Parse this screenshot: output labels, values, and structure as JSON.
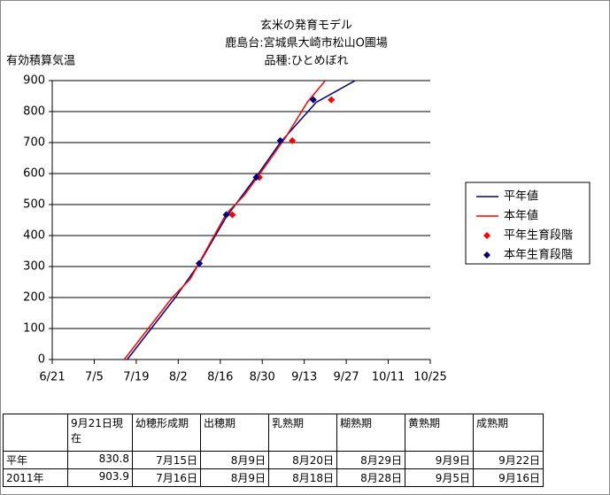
{
  "chart_data": {
    "type": "line",
    "title": [
      "玄米の発育モデル",
      "鹿島台:宮城県大崎市松山O圃場",
      "品種:ひとめぼれ"
    ],
    "y_label": "有効積算気温",
    "xlim": [
      172,
      298
    ],
    "xticks": [
      {
        "value": 172,
        "label": "6/21"
      },
      {
        "value": 186,
        "label": "7/5"
      },
      {
        "value": 200,
        "label": "7/19"
      },
      {
        "value": 214,
        "label": "8/2"
      },
      {
        "value": 228,
        "label": "8/16"
      },
      {
        "value": 242,
        "label": "8/30"
      },
      {
        "value": 256,
        "label": "9/13"
      },
      {
        "value": 270,
        "label": "9/27"
      },
      {
        "value": 284,
        "label": "10/11"
      },
      {
        "value": 298,
        "label": "10/25"
      }
    ],
    "ylim": [
      0,
      900
    ],
    "yticks": [
      0,
      100,
      200,
      300,
      400,
      500,
      600,
      700,
      800,
      900
    ],
    "grid": true,
    "series": [
      {
        "name": "平年値",
        "color": "#000080",
        "mode": "line",
        "x": [
          197,
          205,
          213,
          221,
          230,
          240,
          248,
          260,
          273
        ],
        "values": [
          0,
          100,
          200,
          310,
          460,
          590,
          700,
          830,
          900
        ]
      },
      {
        "name": "本年値",
        "color": "#ff0000",
        "mode": "line",
        "x": [
          196,
          204,
          212,
          218,
          222,
          230,
          236,
          242,
          250,
          257,
          263
        ],
        "values": [
          0,
          100,
          200,
          260,
          330,
          470,
          530,
          610,
          720,
          830,
          900
        ]
      },
      {
        "name": "平年生育段階",
        "color": "#ff0000",
        "mode": "markers",
        "x": [
          221,
          232,
          241,
          252,
          265
        ],
        "values": [
          310,
          467,
          588,
          706,
          838
        ]
      },
      {
        "name": "本年生育段階",
        "color": "#000080",
        "mode": "markers",
        "x": [
          221,
          230,
          240,
          248,
          259
        ],
        "values": [
          310,
          467,
          588,
          706,
          838
        ]
      }
    ]
  },
  "table": {
    "header": [
      "9月21日現在",
      "幼穂形成期",
      "出穂期",
      "乳熟期",
      "糊熟期",
      "黄熟期",
      "成熟期"
    ],
    "rows": [
      [
        "平年",
        "830.8",
        "7月15日",
        "8月9日",
        "8月20日",
        "8月29日",
        "9月9日",
        "9月22日"
      ],
      [
        "2011年",
        "903.9",
        "7月16日",
        "8月9日",
        "8月18日",
        "8月28日",
        "9月5日",
        "9月16日"
      ]
    ]
  }
}
